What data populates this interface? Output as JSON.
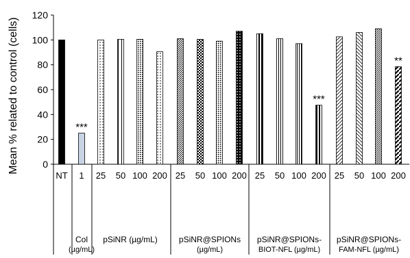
{
  "chart_data": {
    "type": "bar",
    "ylabel": "Mean % related to control (cells)",
    "ylim": [
      0,
      120
    ],
    "yticks": [
      "0",
      "20",
      "40",
      "60",
      "80",
      "100",
      "120"
    ],
    "grid": false,
    "categories": [
      "NT",
      "1",
      "25",
      "50",
      "100",
      "200",
      "25",
      "50",
      "100",
      "200",
      "25",
      "50",
      "100",
      "200",
      "25",
      "50",
      "100",
      "200"
    ],
    "values": [
      100,
      25,
      100,
      100.5,
      100.5,
      90.5,
      101,
      100.5,
      99,
      107,
      105,
      101,
      97,
      47.5,
      102.5,
      106,
      109,
      78.5
    ],
    "annotations": [
      {
        "index": 1,
        "text": "***"
      },
      {
        "index": 13,
        "text": "***"
      },
      {
        "index": 17,
        "text": "**"
      }
    ],
    "groups": [
      {
        "lines": [
          ""
        ],
        "start": 0,
        "end": 0
      },
      {
        "lines": [
          "Col",
          "(µg/mL)"
        ],
        "start": 1,
        "end": 1
      },
      {
        "lines": [
          "pSiNR (µg/mL)"
        ],
        "start": 2,
        "end": 5
      },
      {
        "lines": [
          "pSiNR@SPIONs",
          "(µg/mL)"
        ],
        "start": 6,
        "end": 9
      },
      {
        "lines": [
          "pSiNR@SPIONs-",
          "BIOT-NFL (µg/mL)"
        ],
        "start": 10,
        "end": 13
      },
      {
        "lines": [
          "pSiNR@SPIONs-",
          "FAM-NFL (µg/mL)"
        ],
        "start": 14,
        "end": 17
      }
    ]
  }
}
